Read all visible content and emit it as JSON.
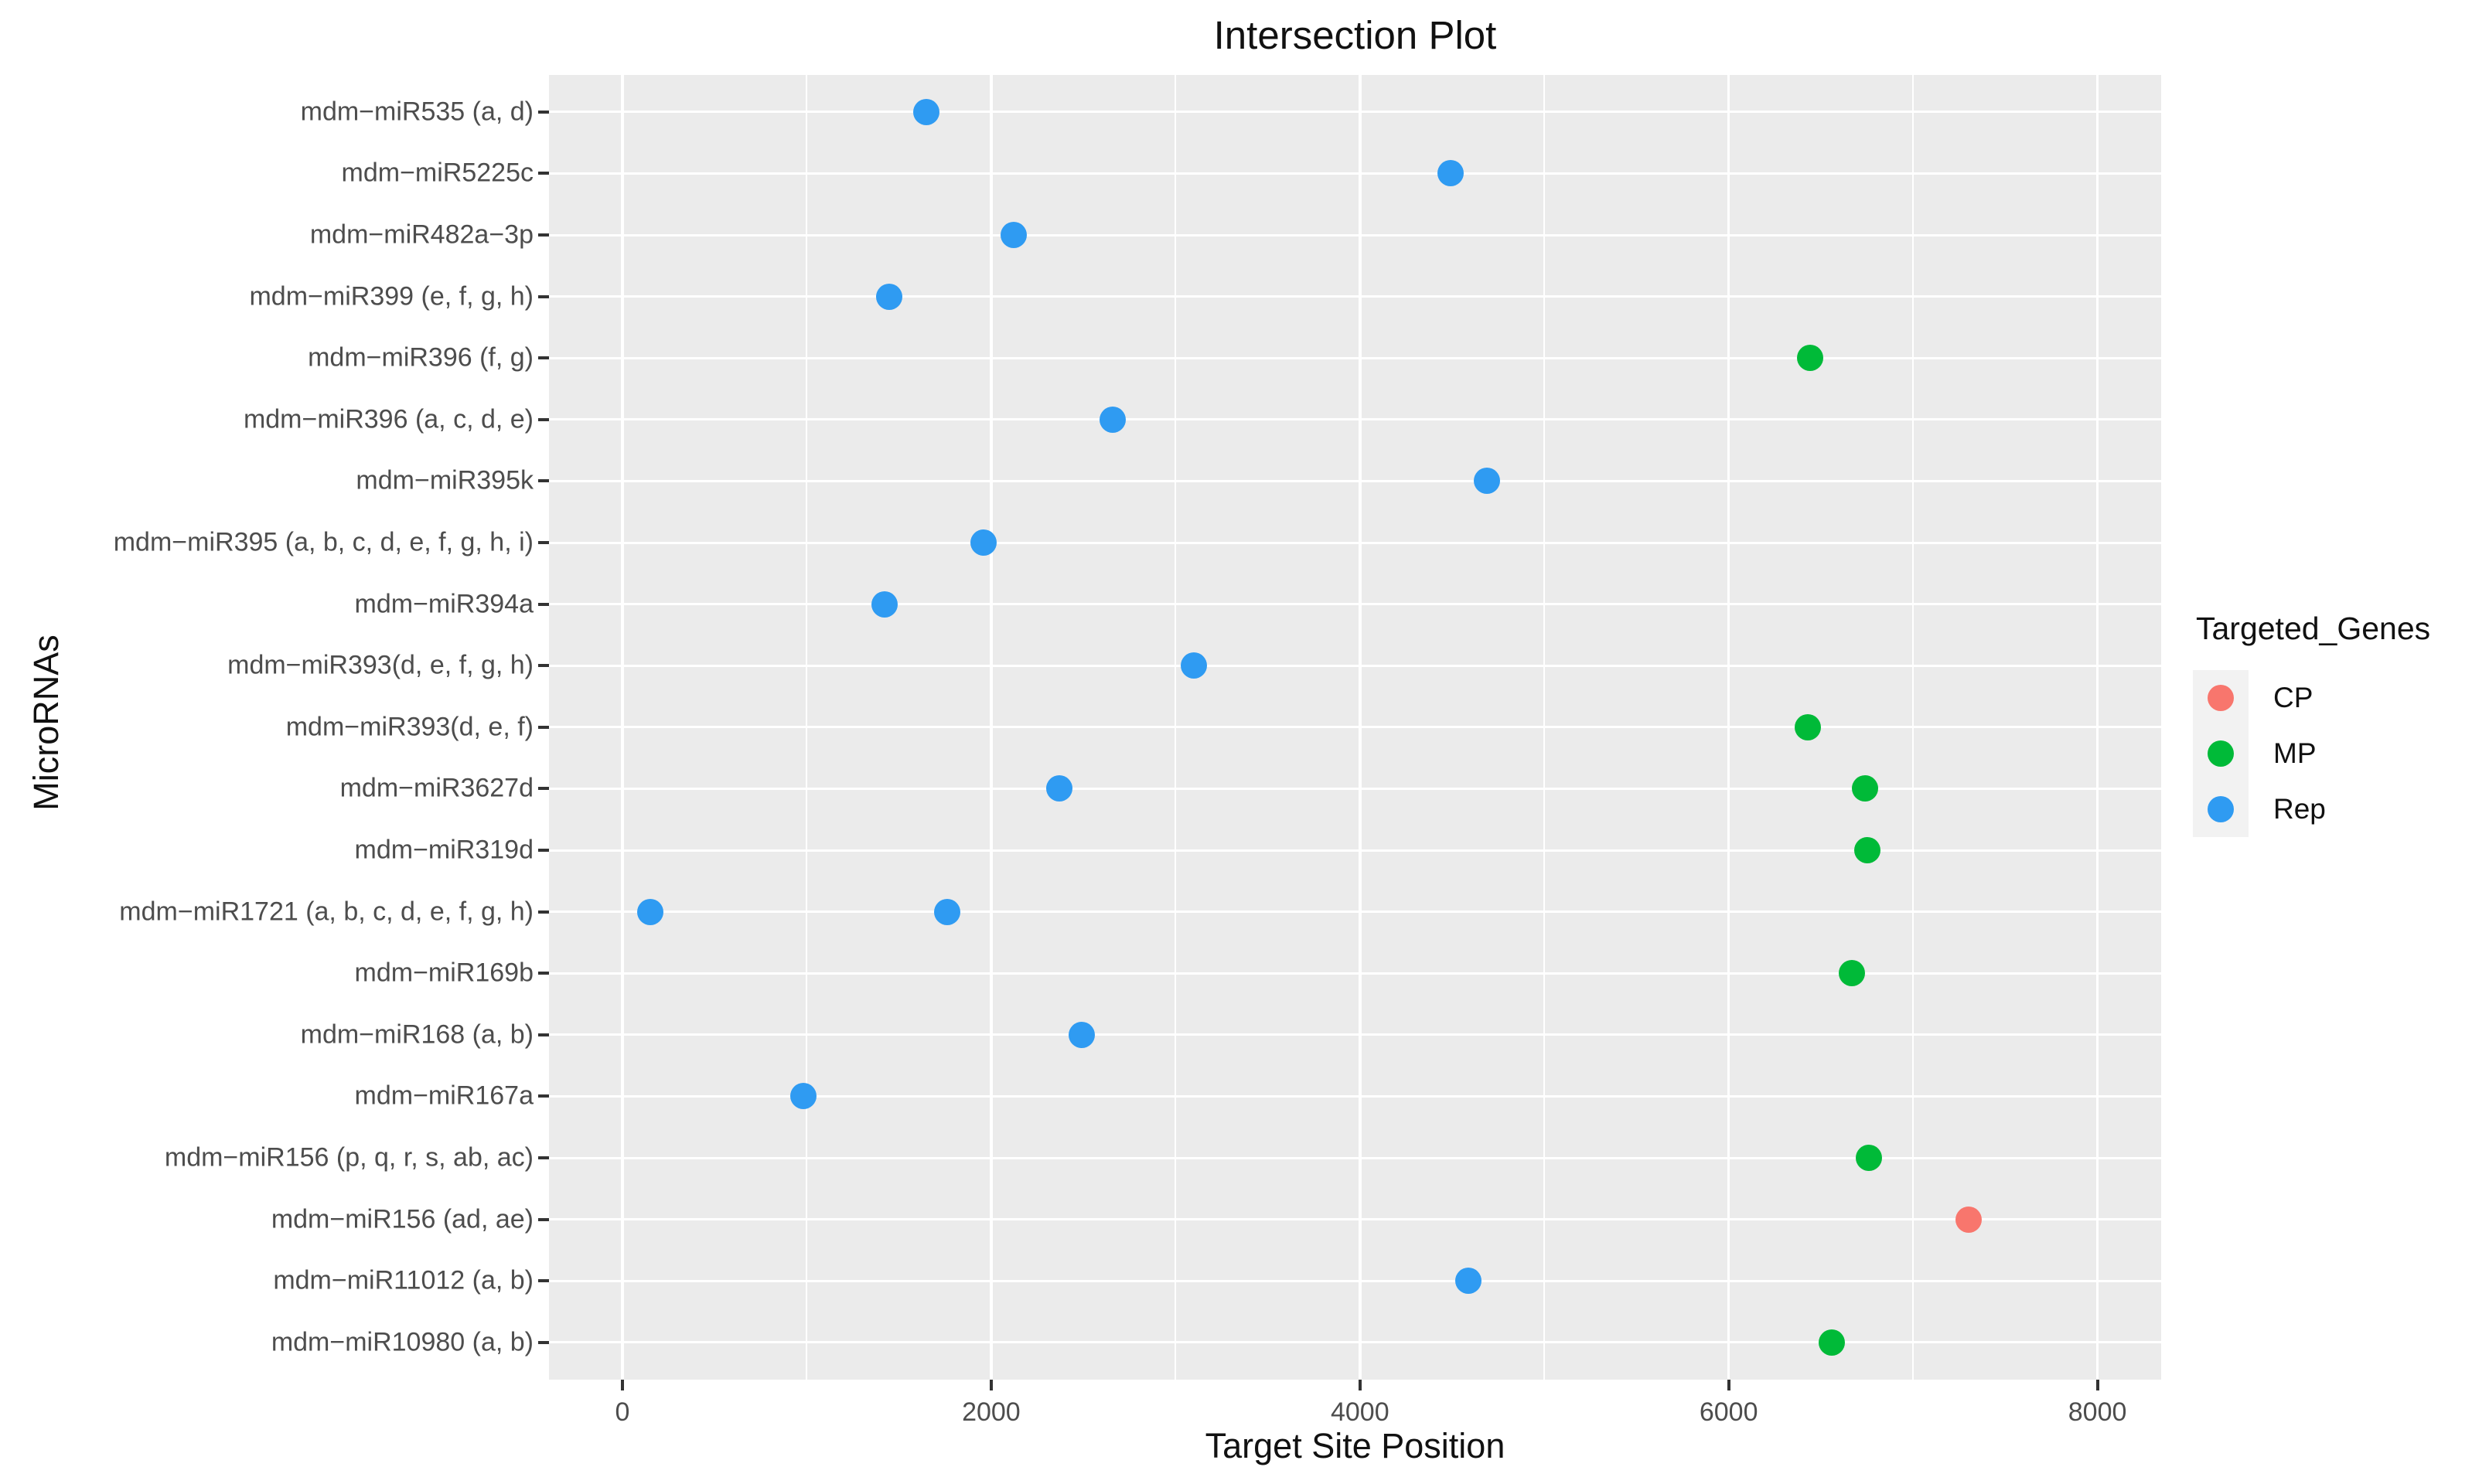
{
  "title": "Intersection Plot",
  "chart_data": {
    "type": "scatter",
    "title": "Intersection Plot",
    "xlabel": "Target Site Position",
    "ylabel": "MicroRNAs",
    "legend_title": "Targeted_Genes",
    "legend_position": "right",
    "grid": true,
    "panel_background": "#EBEBEB",
    "grid_color": "#FFFFFF",
    "tick_label_color": "#4D4D4D",
    "xlim": [
      -400,
      8350
    ],
    "x_ticks": [
      0,
      2000,
      4000,
      6000,
      8000
    ],
    "x_minor_gridlines": [
      1000,
      3000,
      5000,
      7000
    ],
    "categories": [
      "mdm−miR535 (a, d)",
      "mdm−miR5225c",
      "mdm−miR482a−3p",
      "mdm−miR399 (e, f, g, h)",
      "mdm−miR396 (f, g)",
      "mdm−miR396 (a, c, d, e)",
      "mdm−miR395k",
      "mdm−miR395 (a, b, c, d, e, f, g, h, i)",
      "mdm−miR394a",
      "mdm−miR393(d, e, f, g, h)",
      "mdm−miR393(d, e, f)",
      "mdm−miR3627d",
      "mdm−miR319d",
      "mdm−miR1721 (a, b, c, d, e, f, g, h)",
      "mdm−miR169b",
      "mdm−miR168 (a, b)",
      "mdm−miR167a",
      "mdm−miR156 (p, q, r, s, ab, ac)",
      "mdm−miR156 (ad, ae)",
      "mdm−miR11012 (a, b)",
      "mdm−miR10980 (a, b)"
    ],
    "groups": [
      {
        "label": "CP",
        "color": "#F8766D"
      },
      {
        "label": "MP",
        "color": "#00BA38"
      },
      {
        "label": "Rep",
        "color": "#2F9BF2"
      }
    ],
    "points": [
      {
        "microRNA": "mdm−miR535 (a, d)",
        "x": 1650,
        "group": "Rep"
      },
      {
        "microRNA": "mdm−miR5225c",
        "x": 4490,
        "group": "Rep"
      },
      {
        "microRNA": "mdm−miR482a−3p",
        "x": 2120,
        "group": "Rep"
      },
      {
        "microRNA": "mdm−miR399 (e, f, g, h)",
        "x": 1445,
        "group": "Rep"
      },
      {
        "microRNA": "mdm−miR396 (f, g)",
        "x": 6440,
        "group": "MP"
      },
      {
        "microRNA": "mdm−miR396 (a, c, d, e)",
        "x": 2660,
        "group": "Rep"
      },
      {
        "microRNA": "mdm−miR395k",
        "x": 4690,
        "group": "Rep"
      },
      {
        "microRNA": "mdm−miR395 (a, b, c, d, e, f, g, h, i)",
        "x": 1960,
        "group": "Rep"
      },
      {
        "microRNA": "mdm−miR394a",
        "x": 1420,
        "group": "Rep"
      },
      {
        "microRNA": "mdm−miR393(d, e, f, g, h)",
        "x": 3100,
        "group": "Rep"
      },
      {
        "microRNA": "mdm−miR393(d, e, f)",
        "x": 6430,
        "group": "MP"
      },
      {
        "microRNA": "mdm−miR3627d",
        "x": 2370,
        "group": "Rep"
      },
      {
        "microRNA": "mdm−miR3627d",
        "x": 6740,
        "group": "MP"
      },
      {
        "microRNA": "mdm−miR319d",
        "x": 6750,
        "group": "MP"
      },
      {
        "microRNA": "mdm−miR1721 (a, b, c, d, e, f, g, h)",
        "x": 150,
        "group": "Rep"
      },
      {
        "microRNA": "mdm−miR1721 (a, b, c, d, e, f, g, h)",
        "x": 1760,
        "group": "Rep"
      },
      {
        "microRNA": "mdm−miR169b",
        "x": 6670,
        "group": "MP"
      },
      {
        "microRNA": "mdm−miR168 (a, b)",
        "x": 2490,
        "group": "Rep"
      },
      {
        "microRNA": "mdm−miR167a",
        "x": 980,
        "group": "Rep"
      },
      {
        "microRNA": "mdm−miR156 (p, q, r, s, ab, ac)",
        "x": 6760,
        "group": "MP"
      },
      {
        "microRNA": "mdm−miR156 (ad, ae)",
        "x": 7300,
        "group": "CP"
      },
      {
        "microRNA": "mdm−miR11012 (a, b)",
        "x": 4590,
        "group": "Rep"
      },
      {
        "microRNA": "mdm−miR10980 (a, b)",
        "x": 6560,
        "group": "MP"
      }
    ]
  }
}
